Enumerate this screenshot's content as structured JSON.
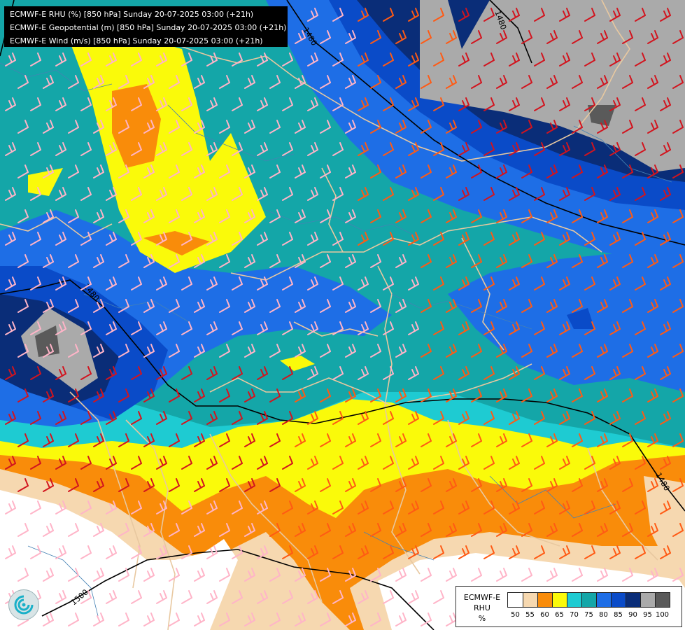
{
  "title": {
    "lines": [
      "ECMWF-E RHU (%) [850 hPa] Sunday 20-07-2025 03:00 (+21h)",
      "ECMWF-E Geopotential (m) [850 hPa] Sunday 20-07-2025 03:00 (+21h)",
      "ECMWF-E Wind (m/s) [850 hPa] Sunday 20-07-2025 03:00 (+21h)"
    ]
  },
  "legend": {
    "model": "ECMWF-E",
    "variable": "RHU",
    "unit": "%",
    "tick_labels": [
      "50",
      "55",
      "60",
      "65",
      "70",
      "75",
      "80",
      "85",
      "90",
      "95",
      "100"
    ],
    "colors": [
      "#ffffff",
      "#f6d8b0",
      "#f98c0a",
      "#fafa0a",
      "#1ecbd2",
      "#14a6a8",
      "#1e6ee6",
      "#0a4bc8",
      "#0a2d78",
      "#aaaaaa",
      "#5a5a5a"
    ]
  },
  "contours": {
    "labels": [
      "1480",
      "1480",
      "1480",
      "1480",
      "1500"
    ]
  },
  "colors": {
    "wind_strong": "#d2141e",
    "wind_medium": "#ff5a14",
    "wind_light": "#ffb4c8",
    "border": "#e8c8a0",
    "river": "#4682b4",
    "contour": "#000000"
  },
  "logo": {
    "icon": "ecmwf-swirl-icon"
  }
}
